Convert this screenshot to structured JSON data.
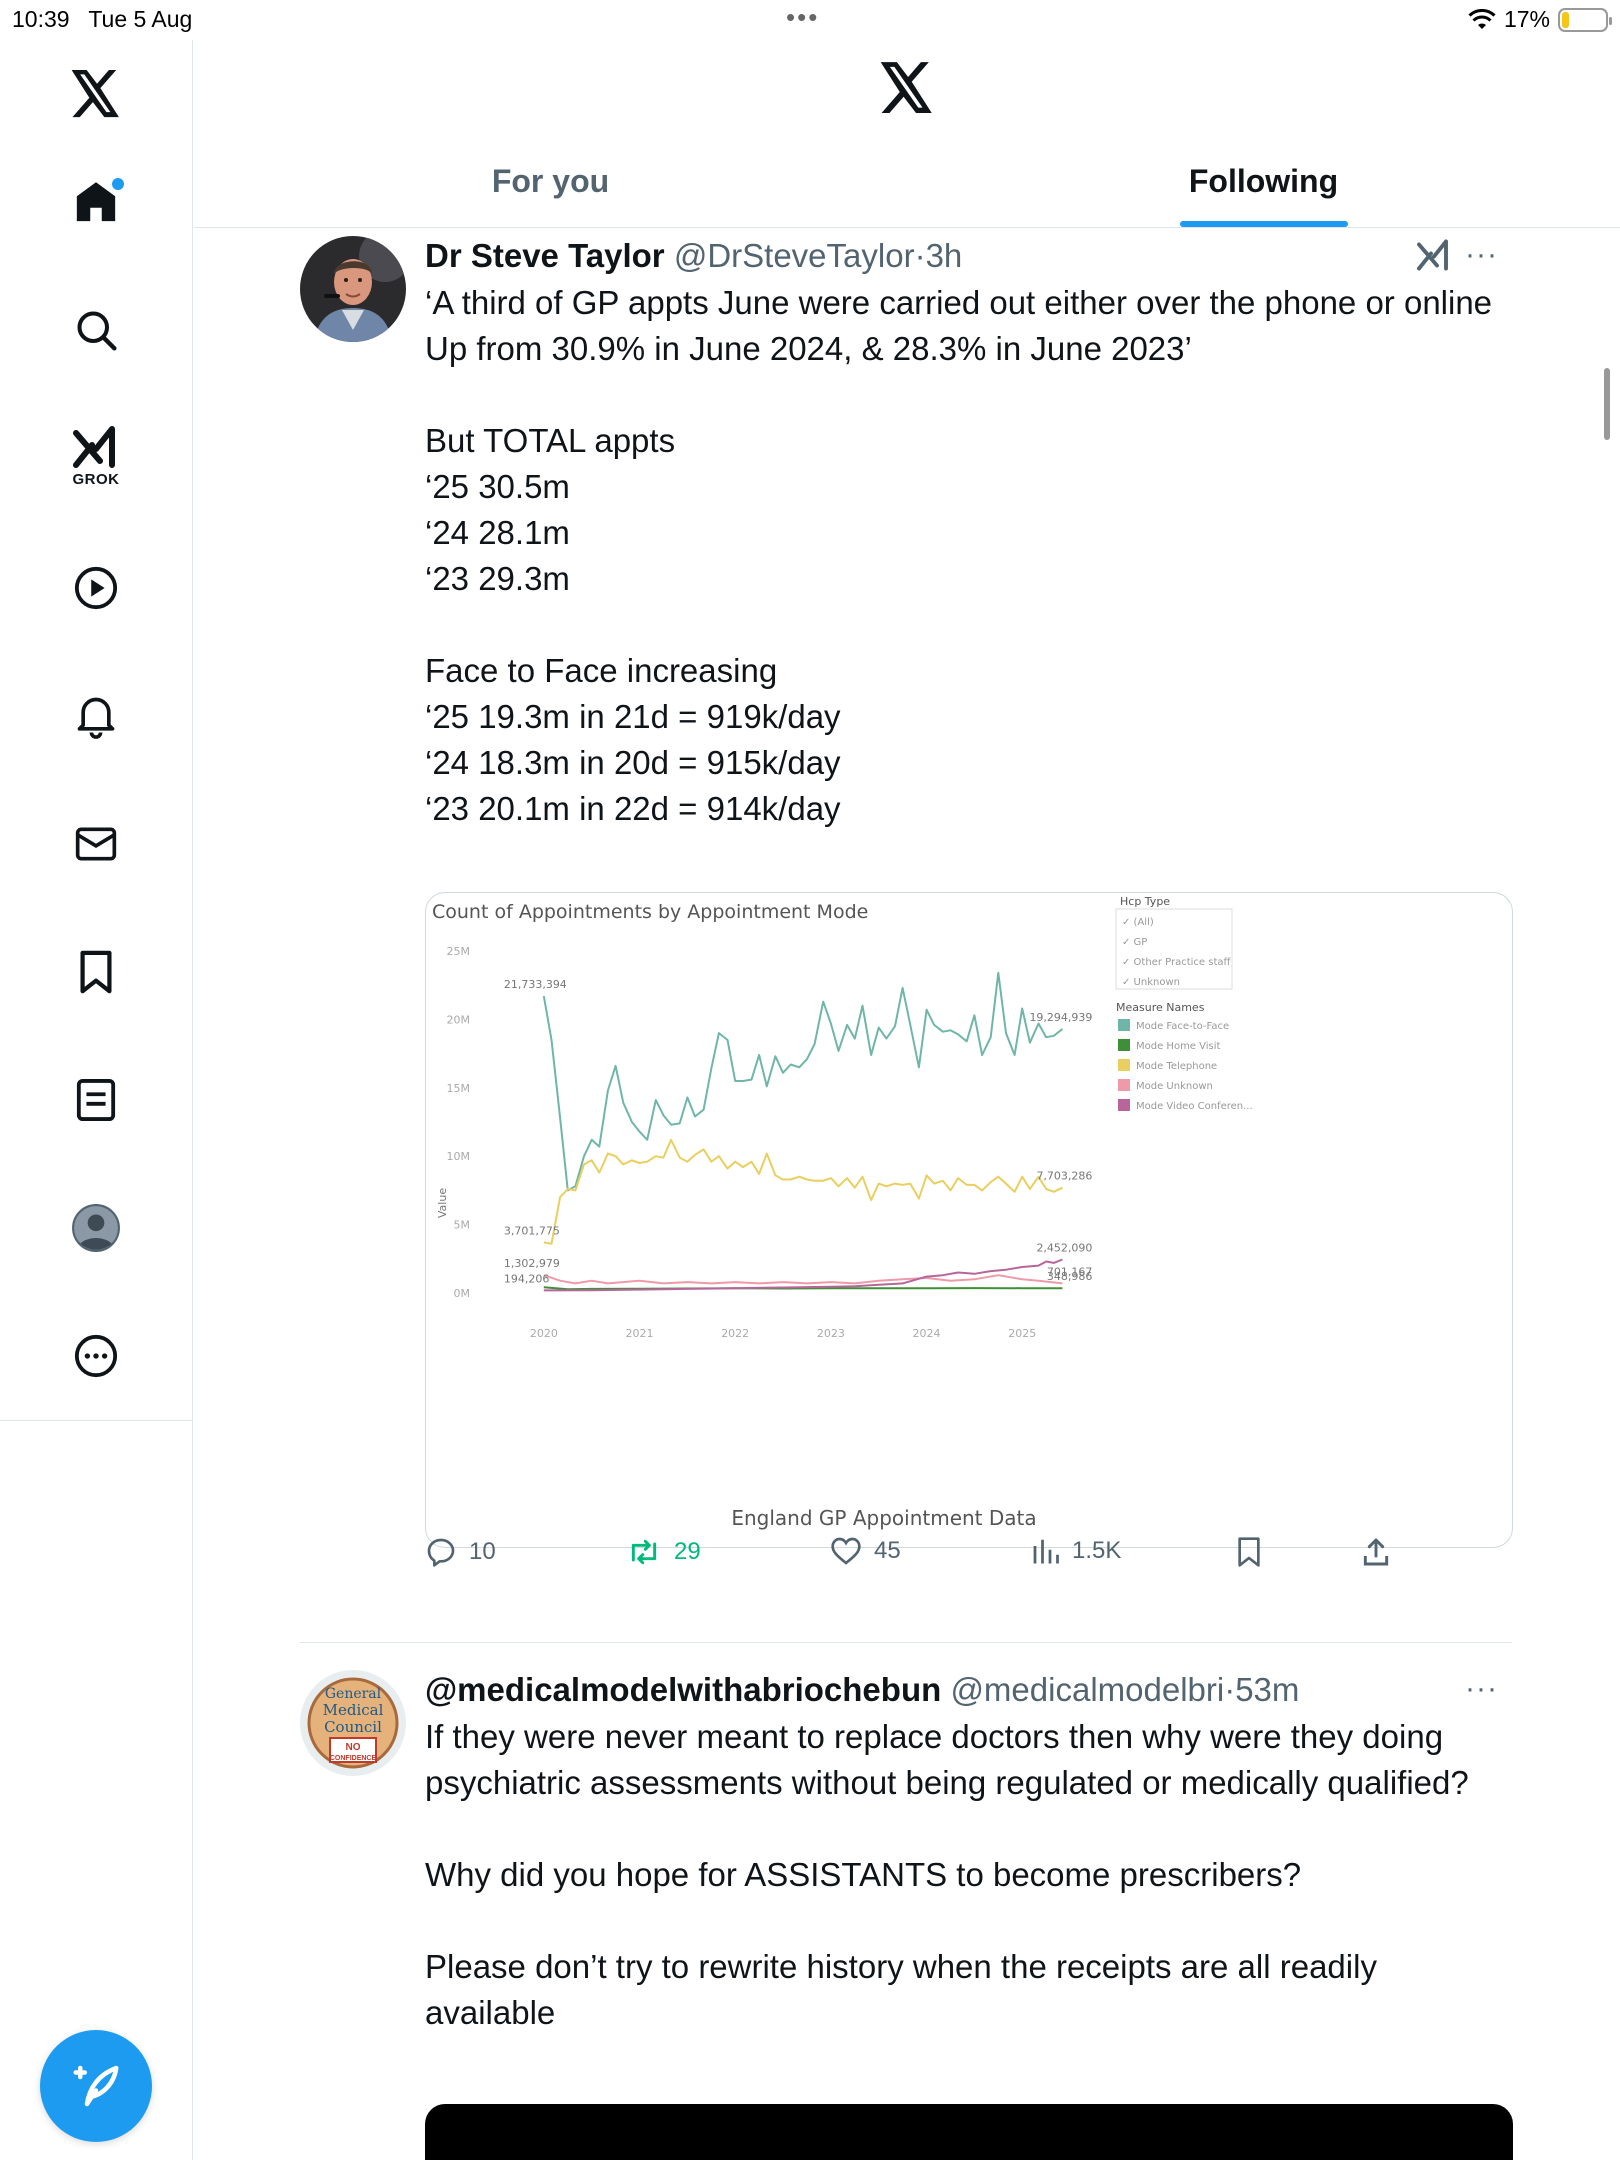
{
  "status_bar": {
    "time": "10:39",
    "date": "Tue 5 Aug",
    "battery": "17%",
    "battery_level": 0.17
  },
  "nav": {
    "items": [
      {
        "name": "home",
        "icon": "home-icon"
      },
      {
        "name": "explore",
        "icon": "search-icon"
      },
      {
        "name": "grok",
        "icon": "grok-icon",
        "label": "GROK"
      },
      {
        "name": "video",
        "icon": "play-icon"
      },
      {
        "name": "notifications",
        "icon": "bell-icon"
      },
      {
        "name": "messages",
        "icon": "mail-icon"
      },
      {
        "name": "bookmarks",
        "icon": "bookmark-icon"
      },
      {
        "name": "lists",
        "icon": "list-icon"
      },
      {
        "name": "profile",
        "icon": "avatar-icon"
      },
      {
        "name": "more",
        "icon": "more-circle-icon"
      }
    ],
    "compose_icon": "compose-icon"
  },
  "header": {
    "tabs": [
      "For you",
      "Following"
    ],
    "active_tab": "Following"
  },
  "tweets": [
    {
      "name": "Dr Steve Taylor",
      "handle": "@DrSteveTaylor",
      "sep": "·",
      "time": "3h",
      "lines": [
        "‘A third of GP appts June were carried out either over the phone or online",
        "Up from 30.9% in June 2024, & 28.3% in June 2023’",
        "",
        "But TOTAL appts",
        "‘25 30.5m",
        "‘24 28.1m",
        "‘23 29.3m",
        "",
        "Face to Face increasing",
        "‘25 19.3m in 21d = 919k/day",
        "‘24 18.3m in 20d = 915k/day",
        "‘23 20.1m in 22d = 914k/day"
      ],
      "stats": {
        "replies": "10",
        "reposts": "29",
        "likes": "45",
        "views": "1.5K"
      }
    },
    {
      "name": "@medicalmodelwithabriochebun",
      "handle": "@medicalmodelbri",
      "sep": "·",
      "time": "53m",
      "lines": [
        "If they were never meant to replace doctors then why were they doing psychiatric assessments without being regulated or medically qualified?",
        "",
        "Why did you hope for ASSISTANTS to become prescribers?",
        "",
        "Please don’t try to rewrite history when the receipts are all readily available"
      ],
      "avatar_text": [
        "General",
        "Medical",
        "Council",
        "NO",
        "CONFIDENCE"
      ]
    }
  ],
  "chart_data": {
    "type": "line",
    "title": "Count of Appointments by Appointment Mode",
    "subtitle": "England GP Appointment Data",
    "ylabel": "Value",
    "xlabel": "",
    "x_ticks": [
      "2020",
      "2021",
      "2022",
      "2023",
      "2024",
      "2025"
    ],
    "y_ticks": [
      "0M",
      "5M",
      "10M",
      "15M",
      "20M",
      "25M"
    ],
    "ylim": [
      0,
      25000000
    ],
    "xlim": [
      2019.5,
      2025.75
    ],
    "grid": false,
    "legend_placement": "right",
    "filter": {
      "title": "Hcp Type",
      "options": [
        "(All)",
        "GP",
        "Other Practice staff",
        "Unknown"
      ]
    },
    "legend_title": "Measure Names",
    "series": [
      {
        "name": "Mode Face-to-Face",
        "color": "#6fb6a9",
        "start_label": "21,733,394",
        "end_label": "19,294,939",
        "points": [
          [
            2020.0,
            21.7
          ],
          [
            2020.08,
            18.5
          ],
          [
            2020.17,
            12.8
          ],
          [
            2020.25,
            7.5
          ],
          [
            2020.33,
            7.8
          ],
          [
            2020.42,
            10.0
          ],
          [
            2020.5,
            11.2
          ],
          [
            2020.58,
            10.7
          ],
          [
            2020.67,
            14.8
          ],
          [
            2020.75,
            16.6
          ],
          [
            2020.83,
            13.9
          ],
          [
            2020.92,
            12.5
          ],
          [
            2021.0,
            11.8
          ],
          [
            2021.08,
            11.2
          ],
          [
            2021.17,
            14.1
          ],
          [
            2021.25,
            13.0
          ],
          [
            2021.33,
            12.3
          ],
          [
            2021.42,
            12.4
          ],
          [
            2021.5,
            14.3
          ],
          [
            2021.58,
            12.9
          ],
          [
            2021.67,
            13.4
          ],
          [
            2021.75,
            16.4
          ],
          [
            2021.83,
            19.0
          ],
          [
            2021.92,
            18.5
          ],
          [
            2022.0,
            15.5
          ],
          [
            2022.08,
            15.5
          ],
          [
            2022.17,
            15.6
          ],
          [
            2022.25,
            17.4
          ],
          [
            2022.33,
            15.1
          ],
          [
            2022.42,
            17.3
          ],
          [
            2022.5,
            16.1
          ],
          [
            2022.58,
            16.7
          ],
          [
            2022.67,
            16.5
          ],
          [
            2022.75,
            17.1
          ],
          [
            2022.83,
            18.2
          ],
          [
            2022.92,
            21.3
          ],
          [
            2023.0,
            19.7
          ],
          [
            2023.08,
            17.7
          ],
          [
            2023.17,
            19.6
          ],
          [
            2023.25,
            18.6
          ],
          [
            2023.33,
            21.0
          ],
          [
            2023.42,
            17.4
          ],
          [
            2023.5,
            19.4
          ],
          [
            2023.58,
            18.6
          ],
          [
            2023.67,
            19.5
          ],
          [
            2023.75,
            22.3
          ],
          [
            2023.83,
            19.6
          ],
          [
            2023.92,
            16.5
          ],
          [
            2024.0,
            20.7
          ],
          [
            2024.08,
            19.6
          ],
          [
            2024.17,
            19.1
          ],
          [
            2024.25,
            19.2
          ],
          [
            2024.33,
            18.9
          ],
          [
            2024.42,
            18.4
          ],
          [
            2024.5,
            20.3
          ],
          [
            2024.58,
            17.4
          ],
          [
            2024.67,
            18.7
          ],
          [
            2024.75,
            23.4
          ],
          [
            2024.83,
            19.0
          ],
          [
            2024.92,
            17.4
          ],
          [
            2025.0,
            20.8
          ],
          [
            2025.08,
            18.3
          ],
          [
            2025.17,
            19.7
          ],
          [
            2025.25,
            18.7
          ],
          [
            2025.33,
            18.8
          ],
          [
            2025.42,
            19.3
          ]
        ]
      },
      {
        "name": "Mode Home Visit",
        "color": "#3f8f3a",
        "end_label": "348,986",
        "points": [
          [
            2020.0,
            0.42
          ],
          [
            2020.25,
            0.28
          ],
          [
            2020.5,
            0.3
          ],
          [
            2021.0,
            0.31
          ],
          [
            2021.5,
            0.33
          ],
          [
            2022.0,
            0.34
          ],
          [
            2022.5,
            0.33
          ],
          [
            2023.0,
            0.35
          ],
          [
            2023.5,
            0.34
          ],
          [
            2024.0,
            0.35
          ],
          [
            2024.5,
            0.36
          ],
          [
            2025.0,
            0.35
          ],
          [
            2025.42,
            0.35
          ]
        ]
      },
      {
        "name": "Mode Telephone",
        "color": "#e9cf5f",
        "start_label": "3,701,775",
        "end_label": "7,703,286",
        "points": [
          [
            2020.0,
            3.7
          ],
          [
            2020.08,
            3.6
          ],
          [
            2020.17,
            7.0
          ],
          [
            2020.25,
            7.6
          ],
          [
            2020.33,
            7.5
          ],
          [
            2020.42,
            9.4
          ],
          [
            2020.5,
            9.7
          ],
          [
            2020.58,
            8.8
          ],
          [
            2020.67,
            10.2
          ],
          [
            2020.75,
            10.0
          ],
          [
            2020.83,
            9.4
          ],
          [
            2020.92,
            9.7
          ],
          [
            2021.0,
            9.5
          ],
          [
            2021.08,
            9.6
          ],
          [
            2021.17,
            10.0
          ],
          [
            2021.25,
            9.9
          ],
          [
            2021.33,
            11.2
          ],
          [
            2021.42,
            9.9
          ],
          [
            2021.5,
            9.6
          ],
          [
            2021.58,
            10.1
          ],
          [
            2021.67,
            10.5
          ],
          [
            2021.75,
            9.6
          ],
          [
            2021.83,
            10.0
          ],
          [
            2021.92,
            9.1
          ],
          [
            2022.0,
            9.6
          ],
          [
            2022.08,
            9.2
          ],
          [
            2022.17,
            9.6
          ],
          [
            2022.25,
            8.7
          ],
          [
            2022.33,
            10.2
          ],
          [
            2022.42,
            8.6
          ],
          [
            2022.5,
            8.3
          ],
          [
            2022.58,
            8.3
          ],
          [
            2022.67,
            8.5
          ],
          [
            2022.75,
            8.3
          ],
          [
            2022.83,
            8.2
          ],
          [
            2022.92,
            8.2
          ],
          [
            2023.0,
            8.4
          ],
          [
            2023.08,
            7.8
          ],
          [
            2023.17,
            8.4
          ],
          [
            2023.25,
            7.7
          ],
          [
            2023.33,
            8.5
          ],
          [
            2023.42,
            6.8
          ],
          [
            2023.5,
            8.0
          ],
          [
            2023.58,
            7.8
          ],
          [
            2023.67,
            8.0
          ],
          [
            2023.75,
            7.9
          ],
          [
            2023.83,
            8.0
          ],
          [
            2023.92,
            6.9
          ],
          [
            2024.0,
            8.6
          ],
          [
            2024.08,
            8.0
          ],
          [
            2024.17,
            8.2
          ],
          [
            2024.25,
            7.5
          ],
          [
            2024.33,
            8.4
          ],
          [
            2024.42,
            7.9
          ],
          [
            2024.5,
            7.9
          ],
          [
            2024.58,
            7.5
          ],
          [
            2024.67,
            8.1
          ],
          [
            2024.75,
            8.5
          ],
          [
            2024.83,
            8.0
          ],
          [
            2024.92,
            7.4
          ],
          [
            2025.0,
            8.5
          ],
          [
            2025.08,
            7.6
          ],
          [
            2025.17,
            8.5
          ],
          [
            2025.25,
            7.6
          ],
          [
            2025.33,
            7.4
          ],
          [
            2025.42,
            7.7
          ]
        ]
      },
      {
        "name": "Mode Unknown",
        "color": "#ef9aa8",
        "start_label": "1,302,979",
        "end_label": "701,167",
        "points": [
          [
            2020.0,
            1.3
          ],
          [
            2020.17,
            0.9
          ],
          [
            2020.33,
            0.7
          ],
          [
            2020.5,
            0.9
          ],
          [
            2020.67,
            0.7
          ],
          [
            2021.0,
            0.9
          ],
          [
            2021.25,
            0.7
          ],
          [
            2021.5,
            0.8
          ],
          [
            2021.75,
            0.7
          ],
          [
            2022.0,
            0.8
          ],
          [
            2022.25,
            0.7
          ],
          [
            2022.5,
            0.8
          ],
          [
            2022.75,
            0.7
          ],
          [
            2023.0,
            0.8
          ],
          [
            2023.25,
            0.7
          ],
          [
            2023.5,
            0.9
          ],
          [
            2023.75,
            1.0
          ],
          [
            2024.0,
            1.1
          ],
          [
            2024.25,
            0.9
          ],
          [
            2024.5,
            1.0
          ],
          [
            2024.75,
            1.3
          ],
          [
            2025.0,
            1.0
          ],
          [
            2025.17,
            0.9
          ],
          [
            2025.42,
            0.7
          ]
        ]
      },
      {
        "name": "Mode Video Conferen...",
        "color": "#b7659a",
        "start_label": "194,206",
        "end_label": "2,452,090",
        "points": [
          [
            2020.0,
            0.19
          ],
          [
            2020.5,
            0.2
          ],
          [
            2021.0,
            0.25
          ],
          [
            2021.5,
            0.3
          ],
          [
            2022.0,
            0.35
          ],
          [
            2022.5,
            0.4
          ],
          [
            2023.0,
            0.45
          ],
          [
            2023.25,
            0.5
          ],
          [
            2023.5,
            0.6
          ],
          [
            2023.75,
            0.7
          ],
          [
            2024.0,
            1.2
          ],
          [
            2024.17,
            1.3
          ],
          [
            2024.33,
            1.5
          ],
          [
            2024.5,
            1.4
          ],
          [
            2024.67,
            1.6
          ],
          [
            2024.83,
            1.7
          ],
          [
            2025.0,
            1.9
          ],
          [
            2025.17,
            2.0
          ],
          [
            2025.25,
            2.3
          ],
          [
            2025.33,
            2.2
          ],
          [
            2025.42,
            2.45
          ]
        ]
      }
    ]
  }
}
